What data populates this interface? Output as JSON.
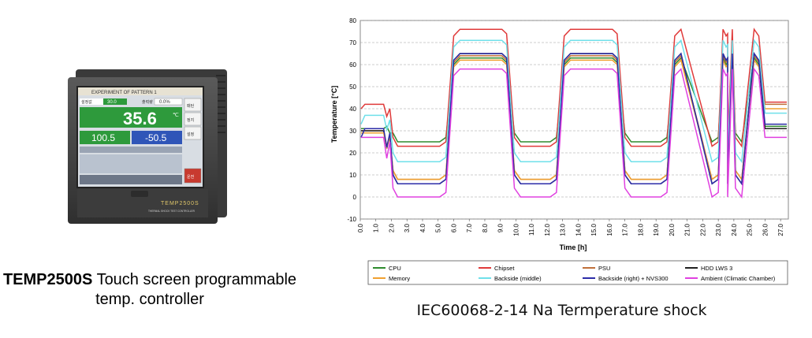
{
  "device": {
    "model": "TEMP2500S",
    "caption_rest": "Touch screen programmable",
    "caption_line2": "temp. controller",
    "brand_logo": "TEMP2500S",
    "subtitle_small": "THERMAL SHOCK TEST CONTROLLER",
    "screen": {
      "header": "EXPERIMENT OF PATTERN 1",
      "set_label": "설정값",
      "set_value": "30.0",
      "out_label": "출력량",
      "out_value": "0.0%",
      "main_value": "35.6",
      "hot_value": "100.5",
      "cold_value": "-50.5",
      "unit": "℃",
      "side_buttons": [
        "패턴",
        "정지",
        "설정",
        "운전"
      ]
    },
    "colors": {
      "body": "#444444",
      "screen_bg": "#d8dde3",
      "green": "#2e9a3c",
      "red": "#c83a2f",
      "blue": "#2f55b8"
    }
  },
  "chart_caption": "IEC60068-2-14 Na Termperature shock",
  "chart_data": {
    "type": "line",
    "xlabel": "Time [h]",
    "ylabel": "Temperature [°C]",
    "xlim": [
      0,
      27.5
    ],
    "ylim": [
      -10,
      80
    ],
    "yticks": [
      -10,
      0,
      10,
      20,
      30,
      40,
      50,
      60,
      70,
      80
    ],
    "xticks": [
      "0.0",
      "1.0",
      "2.0",
      "3.0",
      "4.0",
      "5.0",
      "6.0",
      "7.0",
      "8.0",
      "9.0",
      "10.0",
      "11.0",
      "12.0",
      "13.0",
      "14.0",
      "15.0",
      "16.0",
      "17.0",
      "18.0",
      "19.0",
      "20.0",
      "21.0",
      "22.0",
      "23.0",
      "24.0",
      "25.0",
      "26.0",
      "27.0"
    ],
    "grid": "horizontal",
    "legend_position": "bottom",
    "series": [
      {
        "name": "CPU",
        "color": "#2e8b2e",
        "hot": 63,
        "cold": 25,
        "start": 31,
        "start_peak": 31,
        "end": 32
      },
      {
        "name": "Chipset",
        "color": "#e03a3a",
        "hot": 76,
        "cold": 23,
        "start": 40,
        "start_peak": 42,
        "end": 43
      },
      {
        "name": "PSU",
        "color": "#c0703a",
        "hot": 64,
        "cold": 8,
        "start": 30,
        "start_peak": 30,
        "end": 42
      },
      {
        "name": "HDD LWS 3",
        "color": "#202020",
        "hot": 65,
        "cold": 6,
        "start": 30,
        "start_peak": 30,
        "end": 31
      },
      {
        "name": "Memory",
        "color": "#f0a030",
        "hot": 62,
        "cold": 8,
        "start": 29,
        "start_peak": 29,
        "end": 40
      },
      {
        "name": "Backside (middle)",
        "color": "#6fe0ea",
        "hot": 71,
        "cold": 16,
        "start": 33,
        "start_peak": 37,
        "end": 38
      },
      {
        "name": "Backside (right) + NVS300",
        "color": "#2c2ca8",
        "hot": 65,
        "cold": 6,
        "start": 27,
        "start_peak": 31,
        "end": 33
      },
      {
        "name": "Ambient (Climatic Chamber)",
        "color": "#e040e0",
        "hot": 58,
        "cold": 0,
        "start": 27,
        "start_peak": 27,
        "end": 27
      }
    ],
    "cycle": {
      "cold_start_h": [
        2.5,
        9.6,
        16.7,
        23.8
      ],
      "hot_start_h": [
        5.5,
        12.6,
        19.7
      ],
      "period_h": 7.1
    }
  }
}
